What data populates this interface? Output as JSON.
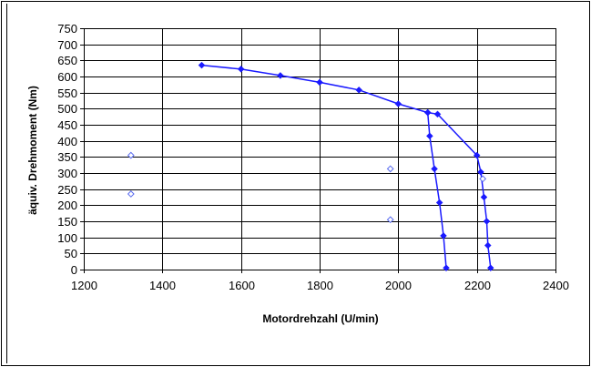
{
  "chart_data": {
    "type": "scatter",
    "title": "",
    "xlabel": "Motordrehzahl (U/min)",
    "ylabel": "äquiv. Drehmoment (Nm)",
    "xlim": [
      1200,
      2400
    ],
    "ylim": [
      0,
      750
    ],
    "x_ticks": [
      "1200",
      "1400",
      "1600",
      "1800",
      "2000",
      "2200",
      "2400"
    ],
    "y_ticks": [
      "0",
      "50",
      "100",
      "150",
      "200",
      "250",
      "300",
      "350",
      "400",
      "450",
      "500",
      "550",
      "600",
      "650",
      "700",
      "750"
    ],
    "grid": true,
    "colors": {
      "line": "#1a1aff",
      "open_marker": "#5a6cf0",
      "grid": "#000000",
      "frame": "#000000"
    },
    "series": [
      {
        "style": "line-filled-diamond",
        "points": [
          [
            1500,
            635
          ],
          [
            1600,
            623
          ],
          [
            1700,
            603
          ],
          [
            1800,
            582
          ],
          [
            1900,
            558
          ],
          [
            2000,
            515
          ],
          [
            2075,
            488
          ],
          [
            2100,
            483
          ],
          [
            2200,
            355
          ],
          [
            2210,
            303
          ],
          [
            2218,
            225
          ],
          [
            2225,
            150
          ],
          [
            2228,
            75
          ],
          [
            2235,
            5
          ]
        ]
      },
      {
        "style": "line-filled-diamond",
        "points": [
          [
            2075,
            488
          ],
          [
            2080,
            415
          ],
          [
            2092,
            313
          ],
          [
            2105,
            208
          ],
          [
            2115,
            105
          ],
          [
            2122,
            5
          ]
        ]
      },
      {
        "style": "open-diamond",
        "points": [
          [
            1320,
            355
          ],
          [
            1320,
            235
          ],
          [
            1980,
            313
          ],
          [
            1980,
            155
          ],
          [
            2215,
            282
          ]
        ]
      }
    ]
  }
}
